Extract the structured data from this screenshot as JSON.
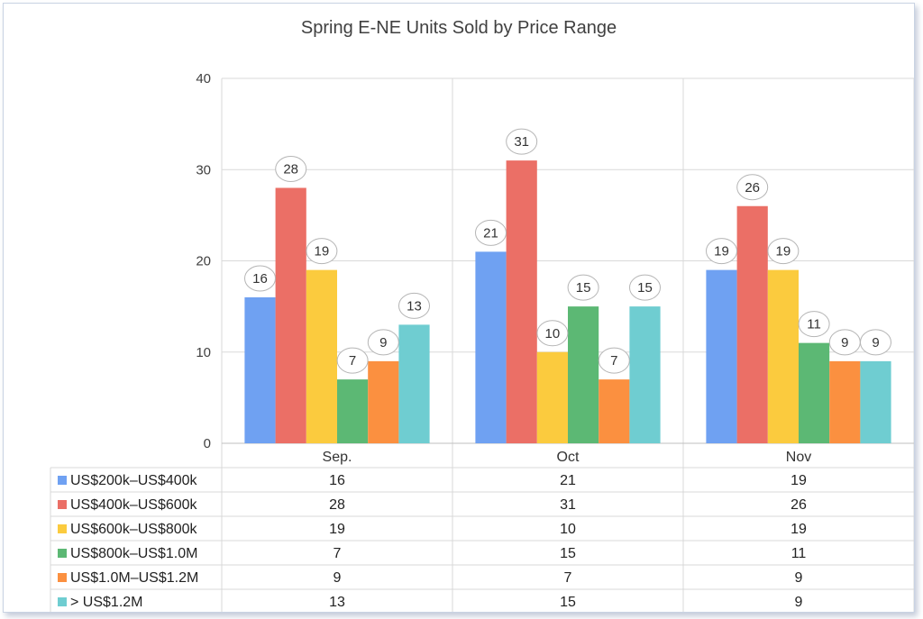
{
  "chart_data": {
    "type": "bar",
    "title": "Spring E-NE Units Sold by Price Range",
    "categories": [
      "Sep.",
      "Oct",
      "Nov"
    ],
    "ylim": [
      0,
      40
    ],
    "yticks": [
      0,
      10,
      20,
      30,
      40
    ],
    "grid": true,
    "legend": "data table below chart",
    "series": [
      {
        "name": "US$200k–US$400k",
        "color": "#6fa1f2",
        "values": [
          16,
          21,
          19
        ]
      },
      {
        "name": "US$400k–US$600k",
        "color": "#eb6f66",
        "values": [
          28,
          31,
          26
        ]
      },
      {
        "name": "US$600k–US$800k",
        "color": "#fbcb3e",
        "values": [
          19,
          10,
          19
        ]
      },
      {
        "name": "US$800k–US$1.0M",
        "color": "#5cb874",
        "values": [
          7,
          15,
          11
        ]
      },
      {
        "name": "US$1.0M–US$1.2M",
        "color": "#fb9040",
        "values": [
          9,
          7,
          9
        ]
      },
      {
        "name": "> US$1.2M",
        "color": "#6fcdd1",
        "values": [
          13,
          15,
          9
        ]
      }
    ]
  }
}
